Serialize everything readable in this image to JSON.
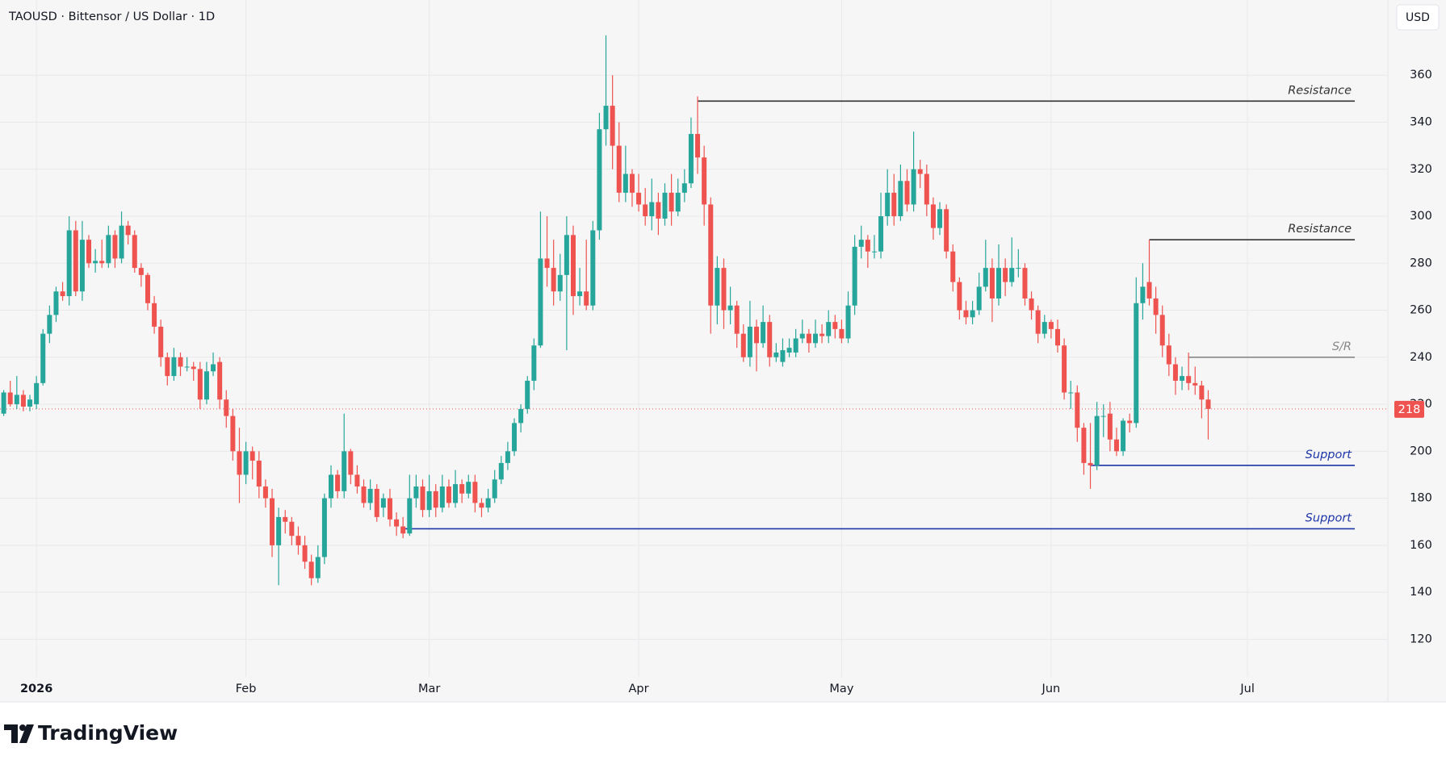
{
  "chart_data": {
    "type": "candlestick",
    "title": "TAOUSD · Bittensor / US Dollar · 1D",
    "currency_button": "USD",
    "brand": "TradingView",
    "up_color": "#26a69a",
    "down_color": "#ef5350",
    "ylim": [
      104,
      392
    ],
    "yticks": [
      120,
      140,
      160,
      180,
      200,
      220,
      240,
      260,
      280,
      300,
      320,
      340,
      360
    ],
    "xticks": [
      {
        "value": 5,
        "label": "2026"
      },
      {
        "value": 37,
        "label": "Feb"
      },
      {
        "value": 65,
        "label": "Mar"
      },
      {
        "value": 97,
        "label": "Apr"
      },
      {
        "value": 128,
        "label": "May"
      },
      {
        "value": 160,
        "label": "Jun"
      },
      {
        "value": 190,
        "label": "Jul"
      }
    ],
    "grid": true,
    "last_price": 218,
    "open": [
      216,
      225,
      220,
      224,
      219,
      220,
      229,
      250,
      258,
      268,
      266,
      294,
      268,
      290,
      280,
      281,
      280,
      292,
      282,
      296,
      292,
      278,
      275,
      263,
      253,
      240,
      232,
      240,
      236,
      236,
      235,
      222,
      234,
      238,
      222,
      215,
      200,
      190,
      200,
      196,
      185,
      180,
      160,
      172,
      170,
      164,
      160,
      153,
      146,
      155,
      180,
      190,
      183,
      200,
      190,
      185,
      178,
      184,
      176,
      180,
      171,
      168,
      165,
      180,
      185,
      175,
      183,
      176,
      185,
      178,
      186,
      182,
      187,
      178,
      176,
      180,
      188,
      195,
      200,
      212,
      218,
      230,
      245,
      282,
      278,
      268,
      275,
      292,
      266,
      268,
      262,
      294,
      337,
      347,
      330,
      310,
      318,
      310,
      305,
      300,
      306,
      299,
      310,
      302,
      310,
      314,
      335,
      325,
      305,
      262,
      278,
      260,
      262,
      250,
      240,
      253,
      246,
      255,
      240,
      238,
      242,
      242,
      248,
      250,
      246,
      250,
      249,
      255,
      252,
      248,
      262,
      287,
      290,
      285,
      285,
      300,
      310,
      300,
      315,
      305,
      320,
      318,
      305,
      295,
      303,
      285,
      272,
      260,
      257,
      260,
      270,
      278,
      265,
      278,
      272,
      278,
      278,
      265,
      260,
      250,
      255,
      252,
      245,
      225,
      225,
      210,
      195,
      194,
      215,
      216,
      205,
      200,
      213,
      212,
      263,
      272,
      265,
      258,
      245,
      237,
      230,
      232,
      229,
      228,
      222
    ],
    "high": [
      226,
      230,
      232,
      226,
      224,
      232,
      252,
      262,
      270,
      272,
      300,
      298,
      298,
      292,
      286,
      290,
      296,
      294,
      302,
      298,
      294,
      280,
      276,
      266,
      256,
      242,
      244,
      242,
      240,
      238,
      238,
      238,
      242,
      240,
      226,
      218,
      210,
      204,
      202,
      200,
      188,
      184,
      176,
      175,
      172,
      168,
      164,
      156,
      160,
      182,
      194,
      192,
      216,
      201,
      194,
      188,
      188,
      186,
      182,
      184,
      174,
      172,
      190,
      190,
      188,
      190,
      186,
      190,
      188,
      192,
      188,
      190,
      190,
      180,
      184,
      192,
      198,
      204,
      214,
      220,
      232,
      248,
      302,
      300,
      290,
      284,
      300,
      296,
      278,
      290,
      298,
      344,
      377,
      360,
      340,
      330,
      320,
      318,
      312,
      316,
      310,
      314,
      318,
      316,
      320,
      342,
      351,
      330,
      308,
      283,
      282,
      270,
      264,
      254,
      264,
      256,
      262,
      258,
      246,
      248,
      248,
      252,
      256,
      252,
      256,
      254,
      260,
      258,
      256,
      268,
      292,
      296,
      292,
      292,
      310,
      320,
      318,
      322,
      320,
      336,
      324,
      322,
      308,
      306,
      305,
      288,
      274,
      264,
      264,
      276,
      290,
      282,
      288,
      282,
      291,
      286,
      280,
      268,
      262,
      258,
      256,
      256,
      248,
      230,
      228,
      212,
      212,
      221,
      220,
      221,
      210,
      214,
      216,
      274,
      280,
      290,
      270,
      262,
      250,
      240,
      236,
      242,
      236,
      230,
      226
    ],
    "low": [
      215,
      219,
      218,
      217,
      217,
      218,
      228,
      246,
      255,
      264,
      262,
      266,
      264,
      278,
      276,
      278,
      278,
      278,
      280,
      288,
      276,
      270,
      260,
      250,
      236,
      228,
      230,
      232,
      234,
      230,
      218,
      220,
      232,
      218,
      210,
      196,
      178,
      186,
      188,
      180,
      176,
      155,
      143,
      165,
      160,
      156,
      150,
      143,
      144,
      152,
      176,
      180,
      180,
      186,
      182,
      176,
      175,
      170,
      172,
      168,
      164,
      163,
      164,
      176,
      172,
      172,
      172,
      174,
      176,
      176,
      178,
      180,
      174,
      172,
      174,
      178,
      186,
      192,
      198,
      208,
      216,
      226,
      244,
      270,
      262,
      264,
      243,
      258,
      262,
      260,
      260,
      290,
      330,
      320,
      306,
      306,
      304,
      302,
      296,
      294,
      292,
      296,
      296,
      300,
      306,
      312,
      318,
      296,
      250,
      254,
      252,
      254,
      244,
      238,
      236,
      234,
      244,
      236,
      238,
      236,
      240,
      240,
      246,
      242,
      244,
      246,
      246,
      248,
      246,
      246,
      258,
      282,
      278,
      282,
      282,
      296,
      296,
      298,
      302,
      302,
      312,
      300,
      290,
      292,
      282,
      268,
      256,
      254,
      254,
      258,
      268,
      255,
      262,
      266,
      270,
      274,
      262,
      256,
      246,
      248,
      248,
      242,
      222,
      218,
      204,
      190,
      184,
      192,
      206,
      200,
      198,
      198,
      208,
      210,
      256,
      262,
      250,
      240,
      232,
      224,
      226,
      226,
      224,
      214,
      205
    ],
    "close": [
      225,
      220,
      224,
      219,
      222,
      229,
      250,
      258,
      268,
      266,
      294,
      268,
      290,
      280,
      281,
      280,
      292,
      282,
      296,
      292,
      278,
      275,
      263,
      253,
      240,
      232,
      240,
      236,
      236,
      235,
      222,
      234,
      237,
      222,
      215,
      200,
      190,
      200,
      196,
      185,
      180,
      160,
      172,
      170,
      164,
      160,
      153,
      146,
      155,
      180,
      190,
      183,
      200,
      190,
      185,
      178,
      184,
      172,
      180,
      171,
      168,
      165,
      180,
      185,
      175,
      183,
      176,
      185,
      178,
      186,
      182,
      187,
      178,
      176,
      180,
      188,
      195,
      200,
      212,
      218,
      230,
      245,
      282,
      278,
      268,
      275,
      292,
      266,
      268,
      262,
      294,
      337,
      347,
      330,
      310,
      318,
      310,
      305,
      300,
      306,
      299,
      310,
      302,
      310,
      314,
      335,
      325,
      305,
      262,
      278,
      260,
      262,
      250,
      240,
      253,
      246,
      255,
      240,
      242,
      243,
      244,
      248,
      250,
      246,
      250,
      249,
      255,
      252,
      248,
      262,
      287,
      290,
      285,
      285,
      300,
      310,
      300,
      315,
      305,
      320,
      318,
      305,
      295,
      303,
      285,
      272,
      260,
      257,
      260,
      270,
      278,
      265,
      278,
      272,
      278,
      278,
      265,
      260,
      250,
      255,
      252,
      245,
      225,
      225,
      210,
      195,
      194,
      215,
      215,
      205,
      200,
      213,
      212,
      263,
      270,
      265,
      258,
      245,
      237,
      230,
      232,
      229,
      228,
      222,
      218
    ],
    "levels": [
      {
        "label": "Resistance",
        "value": 349,
        "start": 106,
        "color": "#333333"
      },
      {
        "label": "Resistance",
        "value": 290,
        "start": 175,
        "color": "#333333"
      },
      {
        "label": "S/R",
        "value": 240,
        "start": 181,
        "color": "#888888"
      },
      {
        "label": "Support",
        "value": 194,
        "start": 166,
        "color": "#1e35a8"
      },
      {
        "label": "Support",
        "value": 167,
        "start": 61,
        "color": "#1e35a8"
      }
    ]
  }
}
